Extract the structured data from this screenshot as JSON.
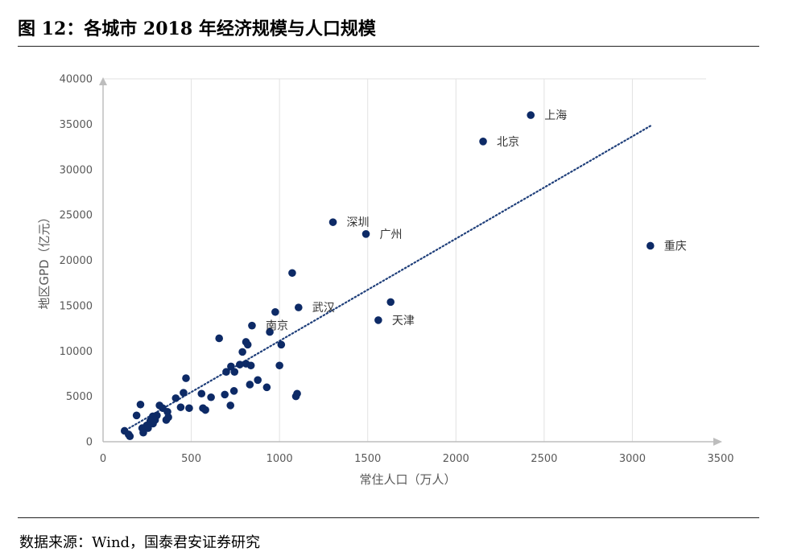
{
  "figure": {
    "title": "图 12：各城市 2018 年经济规模与人口规模",
    "source": "数据来源：Wind，国泰君安证券研究"
  },
  "colors": {
    "point": "#0d2a66",
    "trendline": "#1f3f7a",
    "axis": "#bdbdbd",
    "grid": "#e2e2e2",
    "tick_text": "#595959"
  },
  "chart_data": {
    "type": "scatter",
    "xlabel": "常住人口（万人）",
    "ylabel": "地区GPD（亿元）",
    "xlim": [
      0,
      3500
    ],
    "ylim": [
      0,
      40000
    ],
    "x_ticks": [
      "0",
      "500",
      "1000",
      "1500",
      "2000",
      "2500",
      "3000",
      "3500"
    ],
    "y_ticks": [
      "0",
      "5000",
      "10000",
      "15000",
      "20000",
      "25000",
      "30000",
      "35000",
      "40000"
    ],
    "grid": "vertical",
    "trendline": {
      "style": "dotted",
      "x": [
        130,
        3110
      ],
      "y": [
        1300,
        34900
      ]
    },
    "labeled_points": [
      {
        "label": "上海",
        "x": 2424,
        "y": 36000
      },
      {
        "label": "北京",
        "x": 2154,
        "y": 33100
      },
      {
        "label": "深圳",
        "x": 1303,
        "y": 24200
      },
      {
        "label": "广州",
        "x": 1490,
        "y": 22900
      },
      {
        "label": "重庆",
        "x": 3102,
        "y": 21600
      },
      {
        "label": "武汉",
        "x": 1108,
        "y": 14800
      },
      {
        "label": "天津",
        "x": 1560,
        "y": 13400
      },
      {
        "label": "南京",
        "x": 844,
        "y": 12800
      }
    ],
    "points": [
      {
        "x": 1630,
        "y": 15400
      },
      {
        "x": 1072,
        "y": 18600
      },
      {
        "x": 976,
        "y": 14300
      },
      {
        "x": 945,
        "y": 12100
      },
      {
        "x": 1010,
        "y": 10700
      },
      {
        "x": 658,
        "y": 11400
      },
      {
        "x": 810,
        "y": 11000
      },
      {
        "x": 820,
        "y": 10700
      },
      {
        "x": 790,
        "y": 9900
      },
      {
        "x": 1000,
        "y": 8400
      },
      {
        "x": 810,
        "y": 8600
      },
      {
        "x": 775,
        "y": 8500
      },
      {
        "x": 838,
        "y": 8400
      },
      {
        "x": 725,
        "y": 8300
      },
      {
        "x": 698,
        "y": 7700
      },
      {
        "x": 745,
        "y": 7700
      },
      {
        "x": 470,
        "y": 7000
      },
      {
        "x": 877,
        "y": 6800
      },
      {
        "x": 832,
        "y": 6300
      },
      {
        "x": 928,
        "y": 6000
      },
      {
        "x": 742,
        "y": 5600
      },
      {
        "x": 1100,
        "y": 5300
      },
      {
        "x": 1093,
        "y": 5000
      },
      {
        "x": 690,
        "y": 5200
      },
      {
        "x": 612,
        "y": 4900
      },
      {
        "x": 558,
        "y": 5300
      },
      {
        "x": 456,
        "y": 5400
      },
      {
        "x": 412,
        "y": 4800
      },
      {
        "x": 722,
        "y": 4000
      },
      {
        "x": 566,
        "y": 3700
      },
      {
        "x": 580,
        "y": 3500
      },
      {
        "x": 440,
        "y": 3800
      },
      {
        "x": 488,
        "y": 3700
      },
      {
        "x": 320,
        "y": 4000
      },
      {
        "x": 338,
        "y": 3700
      },
      {
        "x": 365,
        "y": 3300
      },
      {
        "x": 212,
        "y": 4100
      },
      {
        "x": 190,
        "y": 2900
      },
      {
        "x": 305,
        "y": 2900
      },
      {
        "x": 282,
        "y": 2800
      },
      {
        "x": 370,
        "y": 2700
      },
      {
        "x": 295,
        "y": 2400
      },
      {
        "x": 358,
        "y": 2400
      },
      {
        "x": 268,
        "y": 2300
      },
      {
        "x": 283,
        "y": 2000
      },
      {
        "x": 248,
        "y": 1800
      },
      {
        "x": 222,
        "y": 1500
      },
      {
        "x": 255,
        "y": 1500
      },
      {
        "x": 228,
        "y": 1000
      },
      {
        "x": 122,
        "y": 1200
      },
      {
        "x": 145,
        "y": 800
      },
      {
        "x": 152,
        "y": 600
      }
    ]
  }
}
